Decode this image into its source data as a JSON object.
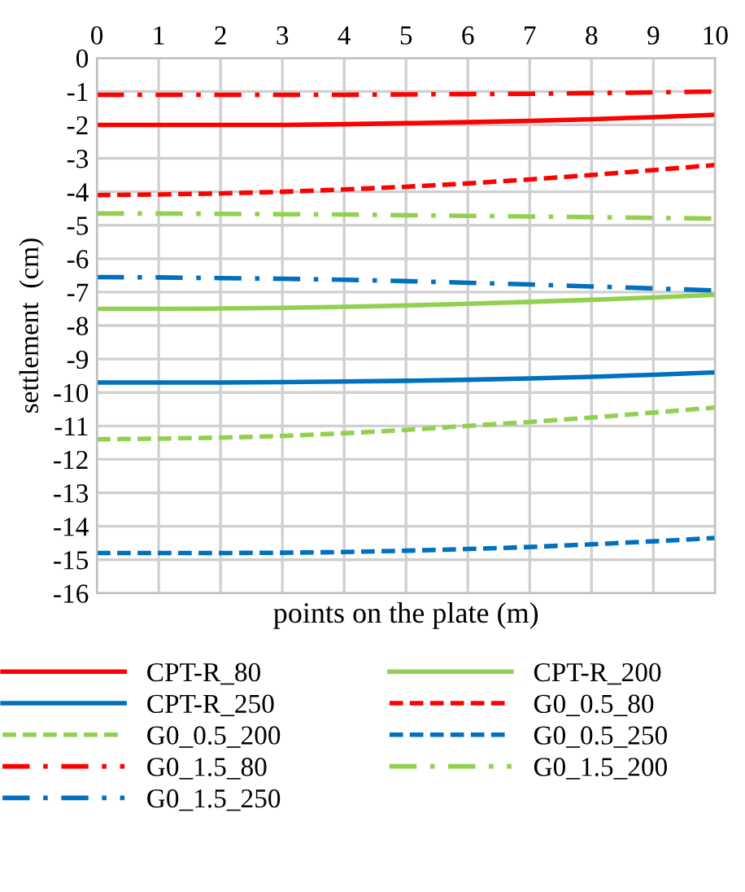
{
  "chart_data": {
    "type": "line",
    "xlabel": "points on the plate (m)",
    "ylabel": "settlement  (cm)",
    "x": [
      0,
      1,
      2,
      3,
      4,
      5,
      6,
      7,
      8,
      9,
      10
    ],
    "xlim": [
      0,
      10
    ],
    "xticks": [
      0,
      1,
      2,
      3,
      4,
      5,
      6,
      7,
      8,
      9,
      10
    ],
    "ylim": [
      -16,
      0
    ],
    "yticks": [
      -16,
      -15,
      -14,
      -13,
      -12,
      -11,
      -10,
      -9,
      -8,
      -7,
      -6,
      -5,
      -4,
      -3,
      -2,
      -1,
      0
    ],
    "grid": true,
    "legend": "bottom",
    "marker": "none",
    "series": [
      {
        "name": "CPT-R_80",
        "color": "#ff0000",
        "line_style": "solid",
        "values": [
          -2.0,
          -2.0,
          -2.0,
          -2.0,
          -1.98,
          -1.95,
          -1.92,
          -1.88,
          -1.83,
          -1.77,
          -1.7
        ]
      },
      {
        "name": "CPT-R_200",
        "color": "#92d050",
        "line_style": "solid",
        "values": [
          -7.5,
          -7.5,
          -7.49,
          -7.47,
          -7.44,
          -7.4,
          -7.35,
          -7.29,
          -7.23,
          -7.16,
          -7.08
        ]
      },
      {
        "name": "CPT-R_250",
        "color": "#0070c0",
        "line_style": "solid",
        "values": [
          -9.7,
          -9.7,
          -9.7,
          -9.69,
          -9.67,
          -9.65,
          -9.62,
          -9.58,
          -9.53,
          -9.47,
          -9.4
        ]
      },
      {
        "name": "G0_0.5_80",
        "color": "#ff0000",
        "line_style": "dashed",
        "values": [
          -4.1,
          -4.08,
          -4.05,
          -4.0,
          -3.93,
          -3.85,
          -3.75,
          -3.63,
          -3.5,
          -3.35,
          -3.2
        ]
      },
      {
        "name": "G0_0.5_200",
        "color": "#92d050",
        "line_style": "dashed",
        "values": [
          -11.4,
          -11.38,
          -11.35,
          -11.3,
          -11.22,
          -11.12,
          -11.0,
          -10.88,
          -10.75,
          -10.6,
          -10.45
        ]
      },
      {
        "name": "G0_0.5_250",
        "color": "#0070c0",
        "line_style": "dashed",
        "values": [
          -14.8,
          -14.8,
          -14.8,
          -14.79,
          -14.77,
          -14.73,
          -14.68,
          -14.62,
          -14.54,
          -14.45,
          -14.35
        ]
      },
      {
        "name": "G0_1.5_80",
        "color": "#ff0000",
        "line_style": "dashdot",
        "values": [
          -1.1,
          -1.1,
          -1.1,
          -1.1,
          -1.1,
          -1.09,
          -1.08,
          -1.07,
          -1.05,
          -1.03,
          -1.0
        ]
      },
      {
        "name": "G0_1.5_200",
        "color": "#92d050",
        "line_style": "dashdot",
        "values": [
          -4.65,
          -4.65,
          -4.66,
          -4.67,
          -4.68,
          -4.7,
          -4.72,
          -4.74,
          -4.76,
          -4.78,
          -4.8
        ]
      },
      {
        "name": "G0_1.5_250",
        "color": "#0070c0",
        "line_style": "dashdot",
        "values": [
          -6.55,
          -6.56,
          -6.58,
          -6.6,
          -6.63,
          -6.67,
          -6.72,
          -6.77,
          -6.83,
          -6.89,
          -6.95
        ]
      }
    ]
  }
}
